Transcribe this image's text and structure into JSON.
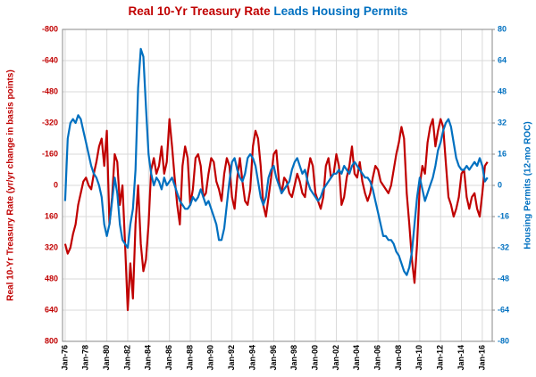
{
  "chart_data": {
    "type": "line",
    "title_parts": [
      {
        "text": "Real 10-Yr Treasury Rate",
        "color": "#c00000"
      },
      {
        "text": "Leads Housing Permits",
        "color": "#0070c0"
      }
    ],
    "y_label": "Real 10-Yr Treasury Rate (yr/yr change in basis points)",
    "y2_label": "Housing Permits (12-mo ROC)",
    "grid": true,
    "xlim": [
      1975.75,
      2016.95
    ],
    "xticks": [
      {
        "value": 1976,
        "label": "Jan-76"
      },
      {
        "value": 1978,
        "label": "Jan-78"
      },
      {
        "value": 1980,
        "label": "Jan-80"
      },
      {
        "value": 1982,
        "label": "Jan-82"
      },
      {
        "value": 1984,
        "label": "Jan-84"
      },
      {
        "value": 1986,
        "label": "Jan-86"
      },
      {
        "value": 1988,
        "label": "Jan-88"
      },
      {
        "value": 1990,
        "label": "Jan-90"
      },
      {
        "value": 1992,
        "label": "Jan-92"
      },
      {
        "value": 1994,
        "label": "Jan-94"
      },
      {
        "value": 1996,
        "label": "Jan-96"
      },
      {
        "value": 1998,
        "label": "Jan-98"
      },
      {
        "value": 2000,
        "label": "Jan-00"
      },
      {
        "value": 2002,
        "label": "Jan-02"
      },
      {
        "value": 2004,
        "label": "Jan-04"
      },
      {
        "value": 2006,
        "label": "Jan-06"
      },
      {
        "value": 2008,
        "label": "Jan-08"
      },
      {
        "value": 2010,
        "label": "Jan-10"
      },
      {
        "value": 2012,
        "label": "Jan-12"
      },
      {
        "value": 2014,
        "label": "Jan-14"
      },
      {
        "value": 2016,
        "label": "Jan-16"
      }
    ],
    "ylim": [
      800,
      -800
    ],
    "yticks": [
      -800,
      -640,
      -480,
      -320,
      -160,
      0,
      160,
      320,
      480,
      640,
      800
    ],
    "y2lim": [
      -80,
      80
    ],
    "y2ticks": [
      -80,
      -64,
      -48,
      -32,
      -16,
      0,
      16,
      32,
      48,
      64,
      80
    ],
    "x": [
      1976,
      1976.25,
      1976.5,
      1976.75,
      1977,
      1977.25,
      1977.5,
      1977.75,
      1978,
      1978.25,
      1978.5,
      1978.75,
      1979,
      1979.25,
      1979.5,
      1979.75,
      1980,
      1980.25,
      1980.5,
      1980.75,
      1981,
      1981.25,
      1981.5,
      1981.75,
      1982,
      1982.25,
      1982.5,
      1982.75,
      1983,
      1983.25,
      1983.5,
      1983.75,
      1984,
      1984.25,
      1984.5,
      1984.75,
      1985,
      1985.25,
      1985.5,
      1985.75,
      1986,
      1986.25,
      1986.5,
      1986.75,
      1987,
      1987.25,
      1987.5,
      1987.75,
      1988,
      1988.25,
      1988.5,
      1988.75,
      1989,
      1989.25,
      1989.5,
      1989.75,
      1990,
      1990.25,
      1990.5,
      1990.75,
      1991,
      1991.25,
      1991.5,
      1991.75,
      1992,
      1992.25,
      1992.5,
      1992.75,
      1993,
      1993.25,
      1993.5,
      1993.75,
      1994,
      1994.25,
      1994.5,
      1994.75,
      1995,
      1995.25,
      1995.5,
      1995.75,
      1996,
      1996.25,
      1996.5,
      1996.75,
      1997,
      1997.25,
      1997.5,
      1997.75,
      1998,
      1998.25,
      1998.5,
      1998.75,
      1999,
      1999.25,
      1999.5,
      1999.75,
      2000,
      2000.25,
      2000.5,
      2000.75,
      2001,
      2001.25,
      2001.5,
      2001.75,
      2002,
      2002.25,
      2002.5,
      2002.75,
      2003,
      2003.25,
      2003.5,
      2003.75,
      2004,
      2004.25,
      2004.5,
      2004.75,
      2005,
      2005.25,
      2005.5,
      2005.75,
      2006,
      2006.25,
      2006.5,
      2006.75,
      2007,
      2007.25,
      2007.5,
      2007.75,
      2008,
      2008.25,
      2008.5,
      2008.75,
      2009,
      2009.25,
      2009.5,
      2009.75,
      2010,
      2010.25,
      2010.5,
      2010.75,
      2011,
      2011.25,
      2011.5,
      2011.75,
      2012,
      2012.25,
      2012.5,
      2012.75,
      2013,
      2013.25,
      2013.5,
      2013.75,
      2014,
      2014.25,
      2014.5,
      2014.75,
      2015,
      2015.25,
      2015.5,
      2015.75,
      2016,
      2016.25,
      2016.5
    ],
    "series": [
      {
        "color": "#c00000",
        "values": [
          300,
          350,
          320,
          250,
          200,
          100,
          40,
          -20,
          -40,
          0,
          20,
          -60,
          -120,
          -200,
          -240,
          -100,
          -280,
          200,
          60,
          -160,
          -120,
          100,
          0,
          300,
          640,
          400,
          580,
          200,
          0,
          300,
          440,
          380,
          200,
          -80,
          -140,
          -60,
          -100,
          -200,
          -60,
          -120,
          -340,
          -200,
          -40,
          100,
          200,
          -100,
          -200,
          -140,
          100,
          20,
          -140,
          -160,
          -100,
          60,
          40,
          -60,
          -140,
          -120,
          -20,
          20,
          80,
          -60,
          -140,
          -100,
          60,
          120,
          -40,
          -140,
          -20,
          80,
          100,
          20,
          -200,
          -280,
          -240,
          -100,
          100,
          160,
          60,
          -40,
          -160,
          -180,
          -20,
          40,
          -40,
          -20,
          40,
          60,
          0,
          -60,
          -20,
          40,
          60,
          -60,
          -140,
          -100,
          40,
          80,
          120,
          60,
          -100,
          -140,
          -40,
          -60,
          -160,
          -100,
          100,
          60,
          -40,
          -100,
          -200,
          -60,
          -40,
          -120,
          -20,
          40,
          80,
          40,
          -40,
          -100,
          -80,
          -20,
          0,
          20,
          40,
          0,
          -80,
          -160,
          -220,
          -300,
          -240,
          40,
          200,
          380,
          500,
          300,
          0,
          -100,
          -60,
          -220,
          -300,
          -340,
          -200,
          -280,
          -340,
          -300,
          -120,
          60,
          100,
          160,
          120,
          60,
          -60,
          -80,
          60,
          120,
          60,
          40,
          120,
          160,
          40,
          -100,
          -120
        ]
      },
      {
        "color": "#0070c0",
        "axis": "y2",
        "values": [
          -8,
          24,
          32,
          34,
          32,
          36,
          34,
          28,
          22,
          16,
          10,
          6,
          4,
          0,
          -6,
          -20,
          -26,
          -20,
          -8,
          4,
          -4,
          -20,
          -28,
          -30,
          -32,
          -20,
          -12,
          8,
          50,
          70,
          66,
          40,
          16,
          6,
          0,
          4,
          2,
          -2,
          4,
          0,
          2,
          4,
          0,
          -4,
          -8,
          -10,
          -12,
          -12,
          -10,
          -6,
          -8,
          -6,
          -2,
          -6,
          -10,
          -8,
          -12,
          -16,
          -20,
          -28,
          -28,
          -22,
          -10,
          2,
          12,
          14,
          8,
          4,
          2,
          6,
          14,
          16,
          14,
          10,
          2,
          -6,
          -10,
          -6,
          4,
          8,
          10,
          4,
          0,
          -4,
          -2,
          0,
          2,
          8,
          12,
          14,
          10,
          6,
          8,
          2,
          -2,
          -4,
          -6,
          -8,
          -6,
          -2,
          0,
          2,
          4,
          6,
          6,
          8,
          6,
          10,
          8,
          6,
          10,
          12,
          10,
          8,
          6,
          4,
          4,
          2,
          -2,
          -8,
          -14,
          -20,
          -26,
          -26,
          -28,
          -28,
          -30,
          -34,
          -36,
          -40,
          -44,
          -46,
          -42,
          -34,
          -20,
          -6,
          4,
          -2,
          -8,
          -4,
          0,
          4,
          10,
          18,
          22,
          28,
          32,
          34,
          30,
          22,
          14,
          10,
          8,
          8,
          10,
          8,
          10,
          12,
          10,
          14,
          10,
          2,
          4
        ]
      }
    ]
  }
}
